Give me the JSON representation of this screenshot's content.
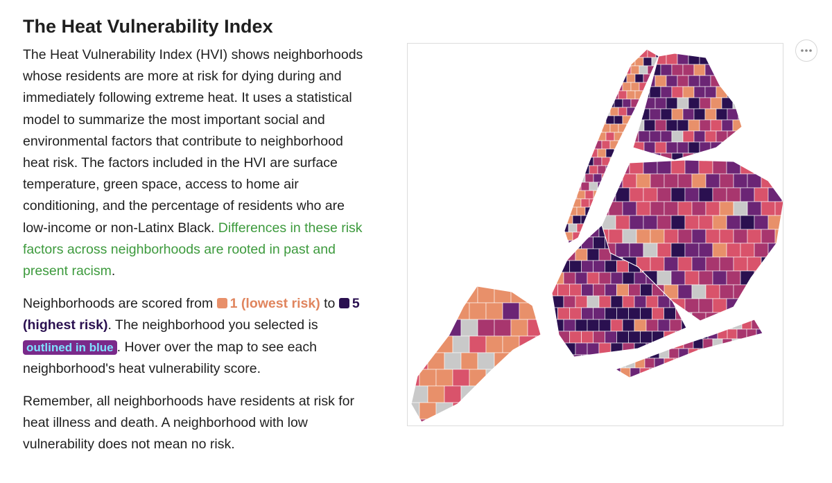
{
  "header": {
    "title": "The Heat Vulnerability Index"
  },
  "paragraphs": [
    {
      "text": "The Heat Vulnerability Index (HVI) shows neighborhoods whose residents are more at risk for dying during and immediately following extreme heat. It uses a statistical model to summarize the most important social and environmental factors that contribute to neighborhood heat risk. The factors included in the HVI are surface temperature, green space, access to home air conditioning, and the percentage of residents who are low-income or non-Latinx Black. ",
      "highlight": "Differences in these risk factors across neighborhoods are rooted in past and present racism",
      "end": "."
    },
    {
      "start": "Neighborhoods are scored from ",
      "low": "1 (lowest risk)",
      "mid": " to ",
      "high": "5 (highest risk)",
      "selected": ". The neighborhood you selected is ",
      "badge": "outlined in blue",
      "end": ". Hover over the map to see each neighborhood's heat vulnerability score."
    },
    {
      "text": "Remember, all neighborhoods have residents at risk for heat illness and death. A neighborhood with low vulnerability does not mean no risk."
    }
  ]
}
